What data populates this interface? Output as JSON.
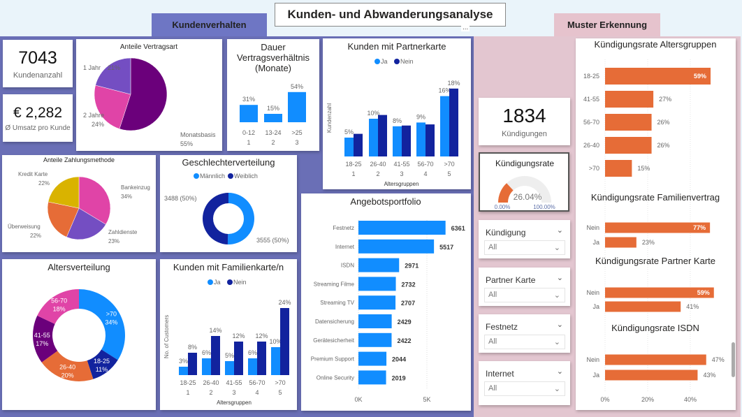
{
  "header": {
    "title": "Kunden- und Abwanderungsanalyse",
    "tab_left": "Kundenverhalten",
    "tab_right": "Muster Erkennung",
    "more": "..."
  },
  "kpis": {
    "customers": {
      "value": "7043",
      "label": "Kundenanzahl"
    },
    "revenue": {
      "value": "€ 2,282",
      "label": "Ø Umsatz pro Kunde"
    },
    "churn": {
      "value": "1834",
      "label": "Kündigungen"
    }
  },
  "gauge": {
    "title": "Kündigungsrate",
    "value": 26.04,
    "value_label": "26.04%",
    "min_label": "0.00%",
    "max_label": "100.00%",
    "color": "#e66c37"
  },
  "slicers": [
    {
      "label": "Kündigung",
      "value": "All"
    },
    {
      "label": "Partner Karte",
      "value": "All"
    },
    {
      "label": "Festnetz",
      "value": "All"
    },
    {
      "label": "Internet",
      "value": "All"
    }
  ],
  "chart_data": [
    {
      "id": "vertragsart",
      "type": "pie",
      "title": "Anteile Vertragsart",
      "slices": [
        {
          "name": "Monatsbasis",
          "value": 55,
          "pct": "55%",
          "color": "#6b007b"
        },
        {
          "name": "2 Jahre",
          "value": 24,
          "pct": "24%",
          "color": "#e044a7"
        },
        {
          "name": "1 Jahr",
          "value": 21,
          "pct": "21%",
          "color": "#744ec2"
        }
      ]
    },
    {
      "id": "dauer",
      "type": "bar",
      "title_lines": [
        "Dauer",
        "Vertragsverhältnis",
        "(Monate)"
      ],
      "categories": [
        "0-12",
        "13-24",
        ">25"
      ],
      "subcategories": [
        "1",
        "2",
        "3"
      ],
      "values": [
        31,
        15,
        54
      ],
      "labels": [
        "31%",
        "15%",
        "54%"
      ],
      "color": "#118dff"
    },
    {
      "id": "partnerkarte",
      "type": "bar",
      "title": "Kunden mit Partnerkarte",
      "ylabel": "Kundenzahl",
      "xlabel": "Altersgruppen",
      "categories": [
        "18-25",
        "26-40",
        "41-55",
        "56-70",
        ">70"
      ],
      "subcategories": [
        "1",
        "2",
        "3",
        "4",
        "5"
      ],
      "series": [
        {
          "name": "Ja",
          "color": "#118dff",
          "values": [
            5,
            10,
            8,
            9,
            16
          ],
          "labels": [
            "5%",
            "10%",
            "8%",
            "9%",
            "16%"
          ]
        },
        {
          "name": "Nein",
          "color": "#12239e",
          "values": [
            6,
            11,
            8.2,
            8.5,
            18
          ],
          "labels": [
            null,
            null,
            null,
            null,
            "18%"
          ]
        }
      ]
    },
    {
      "id": "zahlungsmethode",
      "type": "pie",
      "title": "Anteile Zahlungsmethode",
      "slices": [
        {
          "name": "Bankeinzug",
          "value": 34,
          "pct": "34%",
          "color": "#e044a7"
        },
        {
          "name": "Zahldienste",
          "value": 23,
          "pct": "23%",
          "color": "#744ec2"
        },
        {
          "name": "Überweisung",
          "value": 22,
          "pct": "22%",
          "color": "#e66c37"
        },
        {
          "name": "Kredit Karte",
          "value": 22,
          "pct": "22%",
          "color": "#d9b300"
        }
      ]
    },
    {
      "id": "geschlecht",
      "type": "pie",
      "title": "Geschlechterverteilung",
      "slices": [
        {
          "name": "Männlich",
          "value": 3555,
          "pct": "3555 (50%)",
          "color": "#118dff"
        },
        {
          "name": "Weiblich",
          "value": 3488,
          "pct": "3488 (50%)",
          "color": "#12239e"
        }
      ]
    },
    {
      "id": "angebotsportfolio",
      "type": "bar",
      "orientation": "horizontal",
      "title": "Angebotsportfolio",
      "categories": [
        "Festnetz",
        "Internet",
        "ISDN",
        "Streaming Filme",
        "Streaming TV",
        "Datensicherung",
        "Gerätesicherheit",
        "Premium Support",
        "Online Security"
      ],
      "values": [
        6361,
        5517,
        2971,
        2732,
        2707,
        2429,
        2422,
        2044,
        2019
      ],
      "x_ticks": [
        "0K",
        "5K"
      ],
      "color": "#118dff"
    },
    {
      "id": "altersverteilung",
      "type": "pie",
      "title": "Altersverteilung",
      "slices": [
        {
          "name": ">70",
          "value": 34,
          "pct": "34%",
          "color": "#118dff"
        },
        {
          "name": "18-25",
          "value": 11,
          "pct": "11%",
          "color": "#12239e"
        },
        {
          "name": "26-40",
          "value": 20,
          "pct": "20%",
          "color": "#e66c37"
        },
        {
          "name": "41-55",
          "value": 17,
          "pct": "17%",
          "color": "#6b007b"
        },
        {
          "name": "56-70",
          "value": 18,
          "pct": "18%",
          "color": "#e044a7"
        }
      ]
    },
    {
      "id": "familienkarte",
      "type": "bar",
      "title": "Kunden mit Familienkarte/n",
      "ylabel": "No. of Customers",
      "xlabel": "Altersgruppen",
      "categories": [
        "18-25",
        "26-40",
        "41-55",
        "56-70",
        ">70"
      ],
      "subcategories": [
        "1",
        "2",
        "3",
        "4",
        "5"
      ],
      "series": [
        {
          "name": "Ja",
          "color": "#118dff",
          "values": [
            3,
            6,
            5,
            6,
            10
          ],
          "labels": [
            "3%",
            "6%",
            "5%",
            "6%",
            "10%"
          ]
        },
        {
          "name": "Nein",
          "color": "#12239e",
          "values": [
            8,
            14,
            12,
            12,
            24
          ],
          "labels": [
            "8%",
            "14%",
            "12%",
            "12%",
            "24%"
          ]
        }
      ]
    },
    {
      "id": "kuend_alter",
      "type": "bar",
      "orientation": "horizontal",
      "title": "Kündigungsrate Altersgruppen",
      "categories": [
        "18-25",
        "41-55",
        "56-70",
        "26-40",
        ">70"
      ],
      "values": [
        59,
        27,
        26,
        26,
        15
      ],
      "labels": [
        "59%",
        "27%",
        "26%",
        "26%",
        "15%"
      ],
      "color": "#e66c37"
    },
    {
      "id": "kuend_familie",
      "type": "bar",
      "orientation": "horizontal",
      "title": "Kündigungsrate Familienvertrag",
      "categories": [
        "Nein",
        "Ja"
      ],
      "values": [
        77,
        23
      ],
      "labels": [
        "77%",
        "23%"
      ],
      "color": "#e66c37"
    },
    {
      "id": "kuend_partner",
      "type": "bar",
      "orientation": "horizontal",
      "title": "Kündigungsrate Partner Karte",
      "categories": [
        "Nein",
        "Ja"
      ],
      "values": [
        59,
        41
      ],
      "labels": [
        "59%",
        "41%"
      ],
      "color": "#e66c37"
    },
    {
      "id": "kuend_isdn",
      "type": "bar",
      "orientation": "horizontal",
      "title": "Kündigungsrate ISDN",
      "categories": [
        "Nein",
        "Ja"
      ],
      "values": [
        47,
        43
      ],
      "labels": [
        "47%",
        "43%"
      ],
      "x_ticks": [
        "0%",
        "20%",
        "40%"
      ],
      "color": "#e66c37"
    }
  ]
}
